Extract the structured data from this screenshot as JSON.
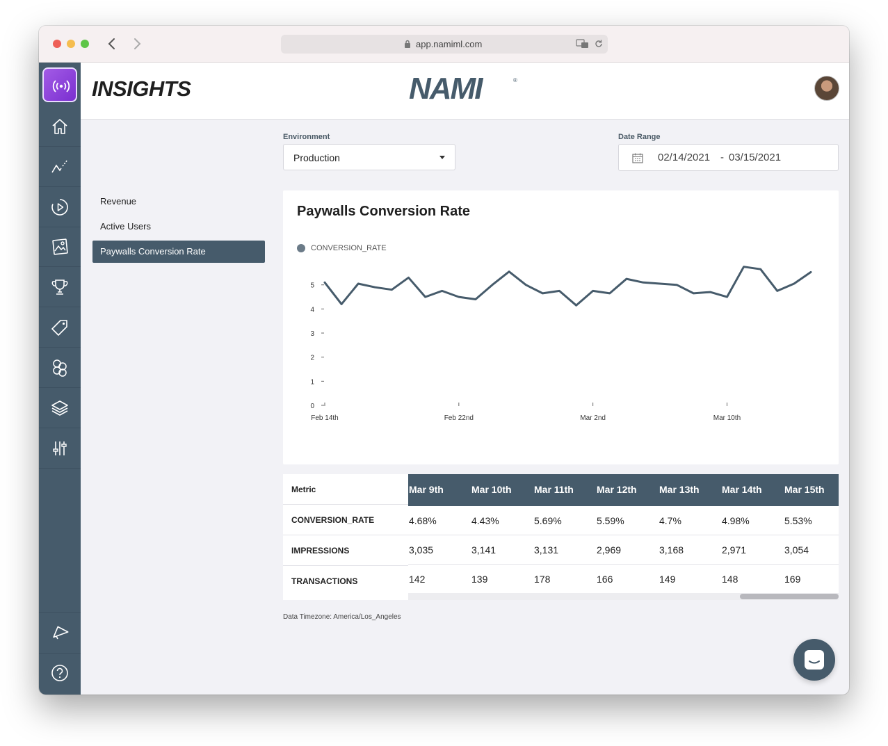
{
  "browser": {
    "url": "app.namiml.com"
  },
  "sidebar": {
    "items": [
      {
        "icon": "home-icon"
      },
      {
        "icon": "analytics-icon"
      },
      {
        "icon": "campaign-icon"
      },
      {
        "icon": "paywalls-icon"
      },
      {
        "icon": "trophy-icon"
      },
      {
        "icon": "tag-icon"
      },
      {
        "icon": "users-icon"
      },
      {
        "icon": "layers-icon"
      },
      {
        "icon": "settings-sliders-icon"
      },
      {
        "icon": "announcement-icon"
      },
      {
        "icon": "help-icon"
      }
    ]
  },
  "header": {
    "title": "INSIGHTS",
    "brand": "NAMI"
  },
  "menu": {
    "items": [
      "Revenue",
      "Active Users",
      "Paywalls Conversion Rate"
    ],
    "active_index": 2
  },
  "filters": {
    "environment_label": "Environment",
    "environment_value": "Production",
    "date_range_label": "Date Range",
    "date_start": "02/14/2021",
    "date_sep": "-",
    "date_end": "03/15/2021"
  },
  "chart_card": {
    "title": "Paywalls Conversion Rate"
  },
  "chart_data": {
    "type": "line",
    "title": "Paywalls Conversion Rate",
    "series": [
      {
        "name": "CONVERSION_RATE",
        "color": "#465b6b",
        "values": [
          5.1,
          4.2,
          5.05,
          4.9,
          4.8,
          5.3,
          4.5,
          4.75,
          4.5,
          4.4,
          5.0,
          5.55,
          5.0,
          4.65,
          4.75,
          4.15,
          4.75,
          4.65,
          5.25,
          5.1,
          5.05,
          5.0,
          4.65,
          4.7,
          4.5,
          5.75,
          5.65,
          4.75,
          5.05,
          5.53
        ]
      }
    ],
    "x_ticks": [
      "Feb 14th",
      "Feb 22nd",
      "Mar 2nd",
      "Mar 10th"
    ],
    "x_tick_index": [
      0,
      8,
      16,
      24
    ],
    "y_ticks": [
      "0",
      "1",
      "2",
      "3",
      "4",
      "5"
    ],
    "ylim": [
      0,
      5.8
    ],
    "legend": "top-left",
    "grid": false
  },
  "table": {
    "metric_header": "Metric",
    "metrics": [
      "CONVERSION_RATE",
      "IMPRESSIONS",
      "TRANSACTIONS"
    ],
    "columns": [
      "Mar 9th",
      "Mar 10th",
      "Mar 11th",
      "Mar 12th",
      "Mar 13th",
      "Mar 14th",
      "Mar 15th"
    ],
    "rows": [
      [
        "4.68%",
        "4.43%",
        "5.69%",
        "5.59%",
        "4.7%",
        "4.98%",
        "5.53%"
      ],
      [
        "3,035",
        "3,141",
        "3,131",
        "2,969",
        "3,168",
        "2,971",
        "3,054"
      ],
      [
        "142",
        "139",
        "178",
        "166",
        "149",
        "148",
        "169"
      ]
    ]
  },
  "footer": {
    "timezone": "Data Timezone: America/Los_Angeles"
  },
  "colors": {
    "sidebar": "#465b6b",
    "accent_logo": "#8b3fdc",
    "line": "#465b6b"
  }
}
